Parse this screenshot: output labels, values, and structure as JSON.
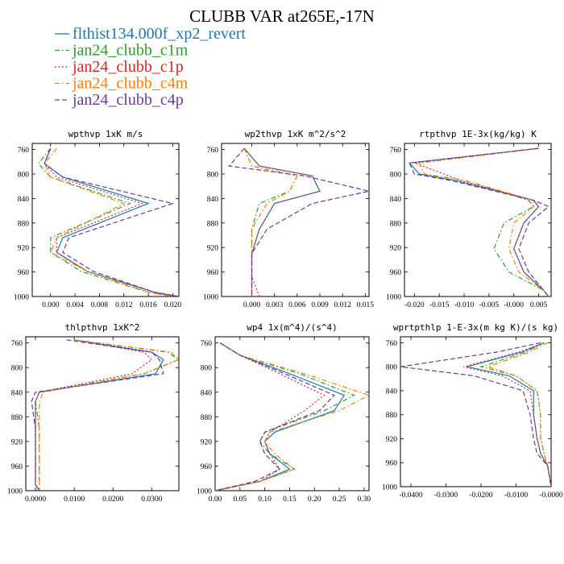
{
  "figure": {
    "title": "CLUBB VAR at265E,-17N",
    "legend": [
      {
        "label": "flthist134.000f_xp2_revert",
        "color": "#1f77b4",
        "dash": "solid"
      },
      {
        "label": "jan24_clubb_c1m",
        "color": "#2ca02c",
        "dash": "dashdot"
      },
      {
        "label": "jan24_clubb_c1p",
        "color": "#d62728",
        "dash": "dot"
      },
      {
        "label": "jan24_clubb_c4m",
        "color": "#ff7f0e",
        "dash": "dashdot"
      },
      {
        "label": "jan24_clubb_c4p",
        "color": "#6a3d9a",
        "dash": "dash"
      }
    ]
  },
  "chart_data": [
    {
      "type": "line",
      "title": "wpthvp  1xK m/s",
      "xlim": [
        -0.003,
        0.021
      ],
      "ylim": [
        1000,
        750
      ],
      "x_ticks": [
        "0.000",
        "0.004",
        "0.008",
        "0.012",
        "0.016",
        "0.020"
      ],
      "x_tick_values": [
        0,
        0.004,
        0.008,
        0.012,
        0.016,
        0.02
      ],
      "y_ticks": [
        "760",
        "800",
        "840",
        "880",
        "920",
        "960",
        "1000"
      ],
      "y_tick_values": [
        760,
        800,
        840,
        880,
        920,
        960,
        1000
      ],
      "y": [
        758,
        783,
        805,
        848,
        904,
        928,
        959,
        993,
        1000
      ],
      "series": [
        {
          "name": "flthist134.000f_xp2_revert",
          "values": [
            0.0,
            -0.001,
            0.002,
            0.016,
            0.002,
            0.001,
            0.006,
            0.017,
            0.021
          ]
        },
        {
          "name": "jan24_clubb_c1m",
          "values": [
            0.0,
            -0.002,
            0.0,
            0.013,
            0.0,
            -0.0,
            0.005,
            0.016,
            0.02
          ]
        },
        {
          "name": "jan24_clubb_c1p",
          "values": [
            0.0,
            -0.001,
            0.001,
            0.015,
            0.001,
            0.001,
            0.006,
            0.017,
            0.021
          ]
        },
        {
          "name": "jan24_clubb_c4m",
          "values": [
            0.001,
            -0.001,
            0.0,
            0.012,
            0.001,
            0.0,
            0.006,
            0.016,
            0.02
          ]
        },
        {
          "name": "jan24_clubb_c4p",
          "values": [
            0.0,
            -0.001,
            0.002,
            0.02,
            0.003,
            0.002,
            0.007,
            0.017,
            0.021
          ]
        }
      ]
    },
    {
      "type": "line",
      "title": "wp2thvp  1xK m^2/s^2",
      "xlim": [
        -0.004,
        0.0155
      ],
      "ylim": [
        1000,
        750
      ],
      "x_ticks": [
        "0.000",
        "0.003",
        "0.006",
        "0.009",
        "0.012",
        "0.015"
      ],
      "x_tick_values": [
        0,
        0.003,
        0.006,
        0.009,
        0.012,
        0.015
      ],
      "y_ticks": [
        "760",
        "800",
        "840",
        "880",
        "920",
        "960",
        "1000"
      ],
      "y_tick_values": [
        760,
        800,
        840,
        880,
        920,
        960,
        1000
      ],
      "y": [
        758,
        787,
        803,
        828,
        848,
        890,
        930,
        968,
        1000
      ],
      "series": [
        {
          "name": "flthist134.000f_xp2_revert",
          "values": [
            -0.001,
            0.001,
            0.008,
            0.009,
            0.003,
            0.001,
            0.0,
            0.0,
            0.0
          ]
        },
        {
          "name": "jan24_clubb_c1m",
          "values": [
            -0.001,
            0.0,
            0.006,
            0.005,
            0.001,
            0.0,
            0.0,
            0.0,
            0.0
          ]
        },
        {
          "name": "jan24_clubb_c1p",
          "values": [
            -0.001,
            0.001,
            0.008,
            0.009,
            0.003,
            0.001,
            0.0,
            0.0,
            0.001
          ]
        },
        {
          "name": "jan24_clubb_c4m",
          "values": [
            -0.001,
            0.0,
            0.006,
            0.005,
            0.002,
            0.0,
            0.0,
            0.0,
            0.0
          ]
        },
        {
          "name": "jan24_clubb_c4p",
          "values": [
            -0.001,
            -0.003,
            0.007,
            0.0155,
            0.008,
            0.002,
            0.0,
            0.0,
            0.0
          ]
        }
      ]
    },
    {
      "type": "line",
      "title": "rtpthvp  1E-3x(kg/kg) K",
      "xlim": [
        -0.022,
        0.0075
      ],
      "ylim": [
        1000,
        750
      ],
      "x_ticks": [
        "-0.020",
        "-0.015",
        "-0.010",
        "-0.005",
        "-0.000",
        "0.005"
      ],
      "x_tick_values": [
        -0.02,
        -0.015,
        -0.01,
        -0.005,
        0.0,
        0.005
      ],
      "y_ticks": [
        "760",
        "800",
        "840",
        "880",
        "920",
        "960",
        "1000"
      ],
      "y_tick_values": [
        760,
        800,
        840,
        880,
        920,
        960,
        1000
      ],
      "y": [
        758,
        782,
        800,
        810,
        843,
        853,
        880,
        922,
        960,
        990,
        1000
      ],
      "series": [
        {
          "name": "flthist134.000f_xp2_revert",
          "values": [
            0.005,
            -0.021,
            -0.019,
            -0.012,
            0.004,
            0.005,
            0.002,
            0.0,
            0.002,
            0.006,
            0.007
          ]
        },
        {
          "name": "jan24_clubb_c1m",
          "values": [
            0.005,
            -0.019,
            -0.018,
            -0.01,
            0.003,
            0.004,
            -0.002,
            -0.004,
            -0.001,
            0.006,
            0.007
          ]
        },
        {
          "name": "jan24_clubb_c1p",
          "values": [
            0.005,
            -0.02,
            -0.014,
            -0.011,
            0.004,
            0.005,
            0.002,
            0.0,
            0.002,
            0.006,
            0.007
          ]
        },
        {
          "name": "jan24_clubb_c4m",
          "values": [
            0.005,
            -0.019,
            -0.018,
            -0.01,
            0.004,
            0.004,
            0.0,
            -0.001,
            0.001,
            0.006,
            0.007
          ]
        },
        {
          "name": "jan24_clubb_c4p",
          "values": [
            0.005,
            -0.021,
            -0.02,
            -0.013,
            0.004,
            0.007,
            0.003,
            0.001,
            0.003,
            0.006,
            0.007
          ]
        }
      ]
    },
    {
      "type": "line",
      "title": "thlpthvp  1xK^2",
      "xlim": [
        -0.0025,
        0.037
      ],
      "ylim": [
        1000,
        750
      ],
      "x_ticks": [
        "0.0000",
        "0.0100",
        "0.0200",
        "0.0300"
      ],
      "x_tick_values": [
        0,
        0.01,
        0.02,
        0.03
      ],
      "y_ticks": [
        "760",
        "800",
        "840",
        "880",
        "920",
        "960",
        "1000"
      ],
      "y_tick_values": [
        760,
        800,
        840,
        880,
        920,
        960,
        1000
      ],
      "y": [
        755,
        775,
        787,
        810,
        840,
        855,
        900,
        960,
        990,
        1000
      ],
      "series": [
        {
          "name": "flthist134.000f_xp2_revert",
          "values": [
            0.01,
            0.03,
            0.033,
            0.031,
            0.001,
            0.0,
            0.0,
            0.0,
            0.0,
            0.001
          ]
        },
        {
          "name": "jan24_clubb_c1m",
          "values": [
            0.01,
            0.034,
            0.037,
            0.028,
            0.001,
            0.0,
            0.001,
            0.001,
            0.001,
            0.001
          ]
        },
        {
          "name": "jan24_clubb_c1p",
          "values": [
            0.01,
            0.028,
            0.03,
            0.025,
            0.001,
            0.0,
            0.0,
            0.0,
            0.0,
            0.001
          ]
        },
        {
          "name": "jan24_clubb_c4m",
          "values": [
            0.01,
            0.035,
            0.037,
            0.028,
            0.002,
            0.001,
            0.001,
            0.001,
            0.001,
            0.001
          ]
        },
        {
          "name": "jan24_clubb_c4p",
          "values": [
            0.008,
            0.03,
            0.032,
            0.033,
            0.0,
            -0.001,
            -0.0,
            0.0,
            0.0,
            0.001
          ]
        }
      ]
    },
    {
      "type": "line",
      "title": "wp4  1x(m^4)/(s^4)",
      "xlim": [
        0.0,
        0.31
      ],
      "ylim": [
        1000,
        750
      ],
      "x_ticks": [
        "0.00",
        "0.05",
        "0.10",
        "0.15",
        "0.20",
        "0.25",
        "0.30"
      ],
      "x_tick_values": [
        0,
        0.05,
        0.1,
        0.15,
        0.2,
        0.25,
        0.3
      ],
      "y_ticks": [
        "760",
        "800",
        "840",
        "880",
        "920",
        "960",
        "1000"
      ],
      "y_tick_values": [
        760,
        800,
        840,
        880,
        920,
        960,
        1000
      ],
      "y": [
        760,
        780,
        810,
        845,
        870,
        905,
        920,
        940,
        965,
        985,
        1000
      ],
      "series": [
        {
          "name": "flthist134.000f_xp2_revert",
          "values": [
            0.01,
            0.05,
            0.15,
            0.26,
            0.24,
            0.12,
            0.1,
            0.11,
            0.15,
            0.09,
            0.0
          ]
        },
        {
          "name": "jan24_clubb_c1m",
          "values": [
            0.01,
            0.05,
            0.17,
            0.28,
            0.22,
            0.1,
            0.09,
            0.11,
            0.16,
            0.09,
            0.0
          ]
        },
        {
          "name": "jan24_clubb_c1p",
          "values": [
            0.01,
            0.05,
            0.13,
            0.22,
            0.18,
            0.11,
            0.1,
            0.11,
            0.13,
            0.09,
            0.0
          ]
        },
        {
          "name": "jan24_clubb_c4m",
          "values": [
            0.01,
            0.05,
            0.18,
            0.31,
            0.25,
            0.11,
            0.1,
            0.12,
            0.16,
            0.09,
            0.0
          ]
        },
        {
          "name": "jan24_clubb_c4p",
          "values": [
            0.01,
            0.05,
            0.14,
            0.24,
            0.21,
            0.1,
            0.09,
            0.1,
            0.13,
            0.08,
            0.0
          ]
        }
      ]
    },
    {
      "type": "line",
      "title": "wprtpthlp  1-E-3x(m kg K)/(s kg)",
      "xlim": [
        -0.043,
        0.0
      ],
      "ylim": [
        1000,
        750
      ],
      "x_ticks": [
        "-0.0400",
        "-0.0300",
        "-0.0200",
        "-0.0100",
        "-0.0000"
      ],
      "x_tick_values": [
        -0.04,
        -0.03,
        -0.02,
        -0.01,
        0.0
      ],
      "y_ticks": [
        "760",
        "800",
        "840",
        "880",
        "920",
        "960",
        "1000"
      ],
      "y_tick_values": [
        760,
        800,
        840,
        880,
        920,
        960,
        1000
      ],
      "y": [
        760,
        775,
        800,
        815,
        840,
        880,
        920,
        945,
        965,
        1000
      ],
      "series": [
        {
          "name": "flthist134.000f_xp2_revert",
          "values": [
            -0.002,
            -0.008,
            -0.024,
            -0.012,
            -0.005,
            -0.005,
            -0.004,
            -0.003,
            -0.001,
            -0.0
          ]
        },
        {
          "name": "jan24_clubb_c1m",
          "values": [
            -0.002,
            -0.007,
            -0.02,
            -0.01,
            -0.004,
            -0.003,
            -0.003,
            -0.002,
            -0.001,
            -0.0
          ]
        },
        {
          "name": "jan24_clubb_c1p",
          "values": [
            -0.002,
            -0.009,
            -0.025,
            -0.014,
            -0.006,
            -0.005,
            -0.004,
            -0.003,
            -0.001,
            -0.0
          ]
        },
        {
          "name": "jan24_clubb_c4m",
          "values": [
            -0.001,
            -0.006,
            -0.018,
            -0.01,
            -0.004,
            -0.003,
            -0.003,
            -0.002,
            -0.001,
            -0.0
          ]
        },
        {
          "name": "jan24_clubb_c4p",
          "values": [
            -0.003,
            -0.015,
            -0.043,
            -0.022,
            -0.008,
            -0.006,
            -0.005,
            -0.004,
            -0.001,
            -0.0
          ]
        }
      ]
    }
  ]
}
